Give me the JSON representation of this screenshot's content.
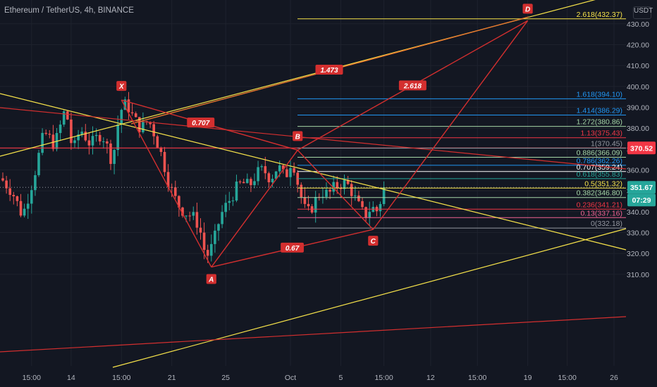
{
  "title": "Ethereum / TetherUS, 4h, BINANCE",
  "unit": "USDT",
  "chart_data": {
    "type": "candlestick",
    "symbol": "ETHUSDT",
    "interval": "4h",
    "exchange": "BINANCE",
    "ylim": [
      303,
      438
    ],
    "y_ticks": [
      310,
      320,
      330,
      340,
      350,
      360,
      370,
      380,
      390,
      400,
      410,
      420,
      430
    ],
    "x_ticks": [
      {
        "label": "15:00",
        "bar": 8
      },
      {
        "label": "14",
        "bar": 19
      },
      {
        "label": "15:00",
        "bar": 33
      },
      {
        "label": "21",
        "bar": 47
      },
      {
        "label": "25",
        "bar": 62
      },
      {
        "label": "Oct",
        "bar": 80
      },
      {
        "label": "5",
        "bar": 94
      },
      {
        "label": "15:00",
        "bar": 106
      },
      {
        "label": "12",
        "bar": 119
      },
      {
        "label": "15:00",
        "bar": 132
      },
      {
        "label": "19",
        "bar": 146
      },
      {
        "label": "15:00",
        "bar": 157
      },
      {
        "label": "26",
        "bar": 170
      }
    ],
    "price_path": [
      [
        0,
        356
      ],
      [
        3,
        350
      ],
      [
        6,
        338
      ],
      [
        9,
        356
      ],
      [
        12,
        378
      ],
      [
        15,
        372
      ],
      [
        18,
        390
      ],
      [
        20,
        368
      ],
      [
        22,
        380
      ],
      [
        25,
        372
      ],
      [
        28,
        378
      ],
      [
        31,
        364
      ],
      [
        33,
        388
      ],
      [
        35,
        392
      ],
      [
        37,
        384
      ],
      [
        39,
        380
      ],
      [
        41,
        384
      ],
      [
        43,
        376
      ],
      [
        45,
        365
      ],
      [
        47,
        352
      ],
      [
        49,
        344
      ],
      [
        51,
        340
      ],
      [
        53,
        338
      ],
      [
        55,
        334
      ],
      [
        57,
        318
      ],
      [
        59,
        324
      ],
      [
        61,
        338
      ],
      [
        63,
        344
      ],
      [
        65,
        350
      ],
      [
        67,
        354
      ],
      [
        69,
        352
      ],
      [
        71,
        358
      ],
      [
        73,
        360
      ],
      [
        75,
        356
      ],
      [
        77,
        362
      ],
      [
        79,
        356
      ],
      [
        81,
        366
      ],
      [
        82,
        358
      ],
      [
        83,
        350
      ],
      [
        85,
        338
      ],
      [
        87,
        344
      ],
      [
        89,
        350
      ],
      [
        91,
        348
      ],
      [
        93,
        352
      ],
      [
        95,
        354
      ],
      [
        97,
        352
      ],
      [
        99,
        344
      ],
      [
        101,
        338
      ],
      [
        103,
        342
      ],
      [
        105,
        340
      ],
      [
        106,
        350
      ]
    ],
    "last_price": 351.67,
    "countdown": "07:29",
    "horizontal_levels": [
      {
        "price": 370.52,
        "label": "370.52",
        "color": "#f23645"
      },
      {
        "price": 351.67,
        "label": "351.67",
        "color": "#26a69a"
      }
    ],
    "fib_levels": [
      {
        "ratio": "2.618",
        "price": 432.37,
        "color": "#f7e34a"
      },
      {
        "ratio": "1.618",
        "price": 394.1,
        "color": "#2196f3"
      },
      {
        "ratio": "1.414",
        "price": 386.29,
        "color": "#2196f3"
      },
      {
        "ratio": "1.272",
        "price": 380.86,
        "color": "#a5d6a7"
      },
      {
        "ratio": "1.13",
        "price": 375.43,
        "color": "#f23645"
      },
      {
        "ratio": "1",
        "price": 370.45,
        "color": "#9598a1"
      },
      {
        "ratio": "0.886",
        "price": 366.09,
        "color": "#a5d6a7"
      },
      {
        "ratio": "0.786",
        "price": 362.26,
        "color": "#2196f3"
      },
      {
        "ratio": "0.707",
        "price": 359.24,
        "color": "#ffffff"
      },
      {
        "ratio": "0.618",
        "price": 355.83,
        "color": "#26a69a"
      },
      {
        "ratio": "0.5",
        "price": 351.32,
        "color": "#f7e34a"
      },
      {
        "ratio": "0.382",
        "price": 346.8,
        "color": "#a5d6a7"
      },
      {
        "ratio": "0.236",
        "price": 341.21,
        "color": "#f23645"
      },
      {
        "ratio": "0.13",
        "price": 337.16,
        "color": "#f06292"
      },
      {
        "ratio": "0",
        "price": 332.18,
        "color": "#9598a1"
      }
    ],
    "harmonic_points": [
      {
        "label": "X",
        "bar": 33,
        "price": 393.5
      },
      {
        "label": "A",
        "bar": 58,
        "price": 313.5
      },
      {
        "label": "B",
        "bar": 82,
        "price": 369.5
      },
      {
        "label": "C",
        "bar": 103,
        "price": 331.5
      },
      {
        "label": "D",
        "bar": 146,
        "price": 431.5
      }
    ],
    "ratio_labels": [
      "0.707",
      "0.67",
      "2.618",
      "1.473"
    ],
    "colors": {
      "up": "#26a69a",
      "down": "#ef5350",
      "pattern": "#d32f2f",
      "trend": "#f7e34a",
      "background": "#131722"
    }
  }
}
